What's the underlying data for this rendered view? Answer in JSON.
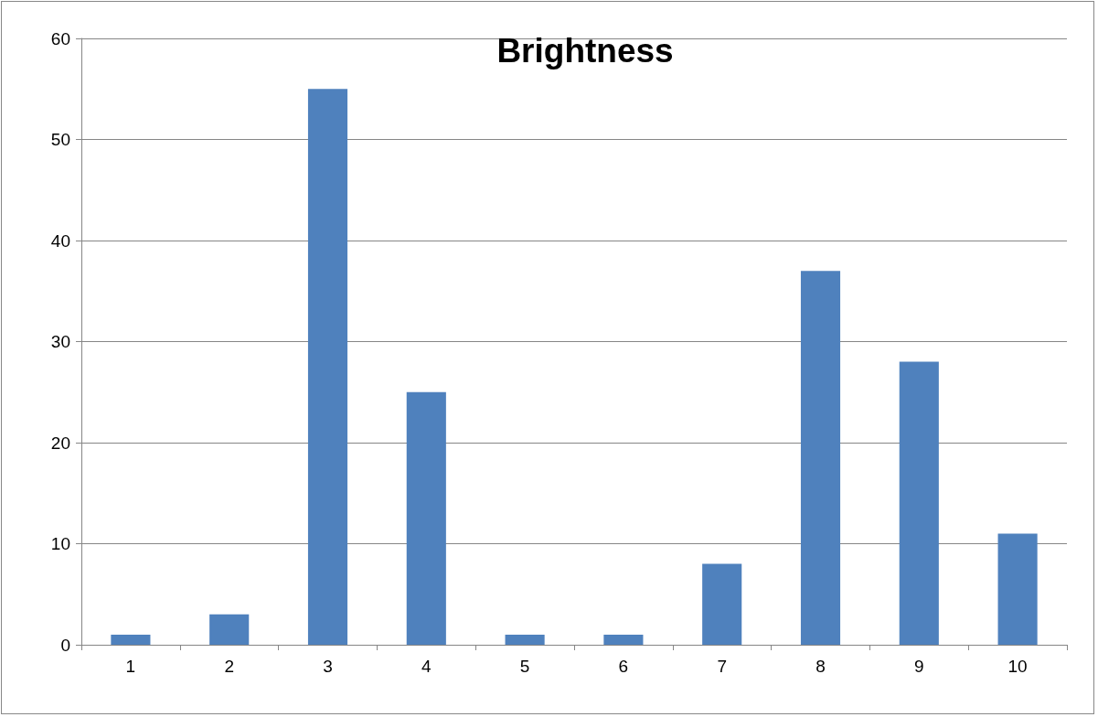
{
  "chart_data": {
    "type": "bar",
    "title": "Brightness",
    "categories": [
      "1",
      "2",
      "3",
      "4",
      "5",
      "6",
      "7",
      "8",
      "9",
      "10"
    ],
    "values": [
      1,
      3,
      55,
      25,
      1,
      1,
      8,
      37,
      28,
      11
    ],
    "color": "#4f81bd",
    "ylim": [
      0,
      60
    ],
    "yticks": [
      0,
      10,
      20,
      30,
      40,
      50,
      60
    ],
    "grid": "y"
  }
}
